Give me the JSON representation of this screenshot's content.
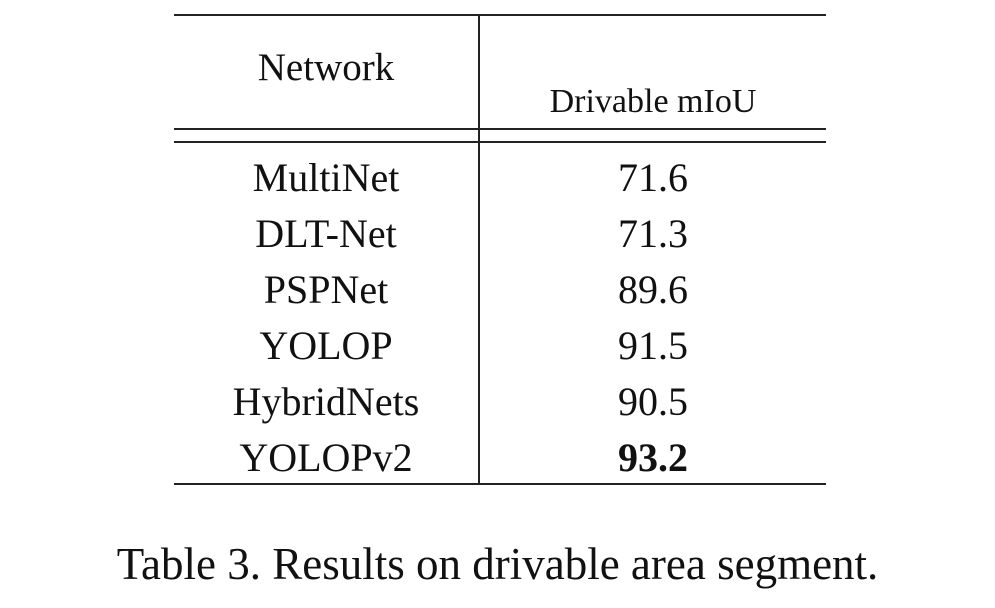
{
  "table": {
    "header": {
      "network": "Network",
      "metric": "Drivable mIoU"
    },
    "rows": [
      {
        "network": "MultiNet",
        "miou": "71.6",
        "best": false
      },
      {
        "network": "DLT-Net",
        "miou": "71.3",
        "best": false
      },
      {
        "network": "PSPNet",
        "miou": "89.6",
        "best": false
      },
      {
        "network": "YOLOP",
        "miou": "91.5",
        "best": false
      },
      {
        "network": "HybridNets",
        "miou": "90.5",
        "best": false
      },
      {
        "network": "YOLOPv2",
        "miou": "93.2",
        "best": true
      }
    ]
  },
  "caption": "Table 3. Results on drivable area segment."
}
